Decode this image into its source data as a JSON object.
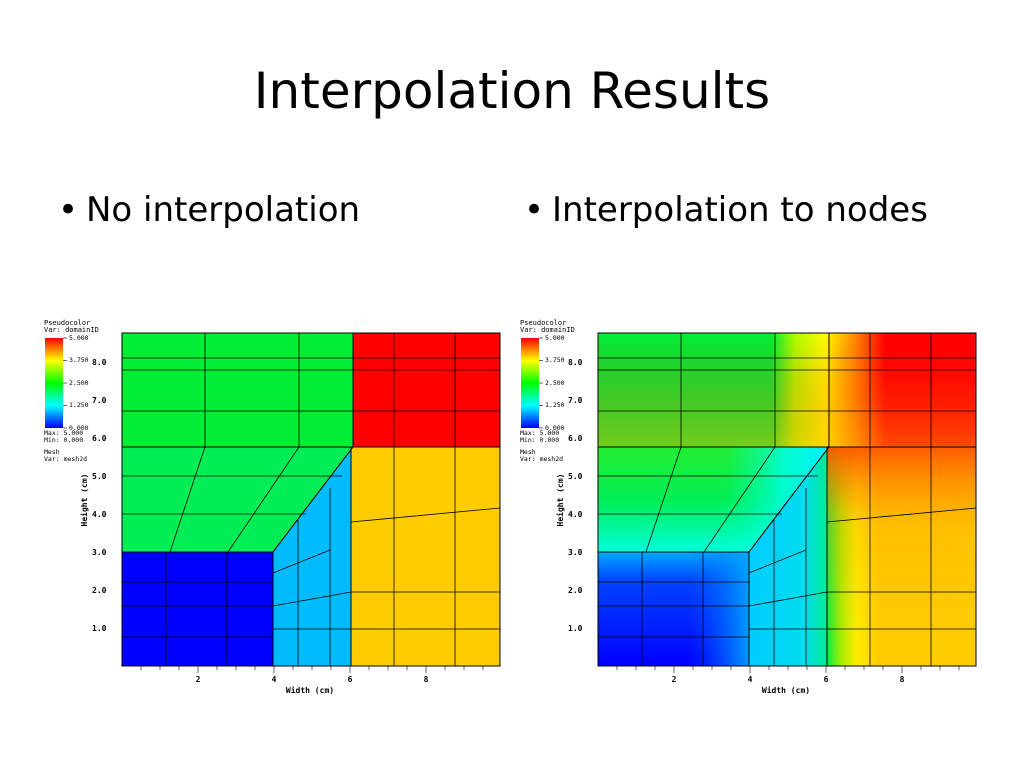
{
  "slide": {
    "title": "Interpolation Results",
    "bullets": [
      {
        "marker": "•",
        "text": "No interpolation"
      },
      {
        "marker": "•",
        "text": "Interpolation to nodes"
      }
    ]
  },
  "plots": [
    {
      "legend": {
        "title": "Pseudocolor",
        "var": "Var: domainID",
        "ticks": [
          "5.000",
          "3.750",
          "2.500",
          "1.250",
          "0.000"
        ],
        "max": "Max: 5.000",
        "min": "Min: 0.000",
        "mesh_title": "Mesh",
        "mesh_var": "Var: mesh2d"
      },
      "xlabel": "Width (cm)",
      "ylabel": "Height (cm)",
      "xticks": [
        "2",
        "4",
        "6",
        "8"
      ],
      "yticks": [
        "1.0",
        "2.0",
        "3.0",
        "4.0",
        "5.0",
        "6.0",
        "7.0",
        "8.0"
      ]
    },
    {
      "legend": {
        "title": "Pseudocolor",
        "var": "Var: domainID",
        "ticks": [
          "5.000",
          "3.750",
          "2.500",
          "1.250",
          "0.000"
        ],
        "max": "Max:  5.000",
        "min": "Min:  0.000",
        "mesh_title": "Mesh",
        "mesh_var": "Var: mesh2d"
      },
      "xlabel": "Width (cm)",
      "ylabel": "Height (cm)",
      "xticks": [
        "2",
        "4",
        "6",
        "8"
      ],
      "yticks": [
        "1.0",
        "2.0",
        "3.0",
        "4.0",
        "5.0",
        "6.0",
        "7.0",
        "8.0"
      ]
    }
  ],
  "chart_data": [
    {
      "type": "heatmap",
      "interpolation": "none",
      "colorscale": {
        "min": 0,
        "max": 5,
        "colors": [
          "#0000ff",
          "#00ffff",
          "#00ff00",
          "#ffff00",
          "#ff0000"
        ]
      },
      "xlim": [
        0,
        10
      ],
      "ylim": [
        0,
        8.8
      ],
      "regions": [
        {
          "name": "green-top",
          "value": 2.5,
          "color": "#00ee33"
        },
        {
          "name": "red",
          "value": 5.0,
          "color": "#ff0000"
        },
        {
          "name": "green-mid",
          "value": 2.5,
          "color": "#00ee55"
        },
        {
          "name": "blue",
          "value": 0.0,
          "color": "#0000ff"
        },
        {
          "name": "cyan",
          "value": 1.25,
          "color": "#00bbff"
        },
        {
          "name": "orange",
          "value": 4.0,
          "color": "#ffcc00"
        }
      ]
    },
    {
      "type": "heatmap",
      "interpolation": "nodes",
      "colorscale": {
        "min": 0,
        "max": 5,
        "colors": [
          "#0000ff",
          "#00ffff",
          "#00ff00",
          "#ffff00",
          "#ff0000"
        ]
      },
      "xlim": [
        0,
        10
      ],
      "ylim": [
        0,
        8.8
      ]
    }
  ]
}
